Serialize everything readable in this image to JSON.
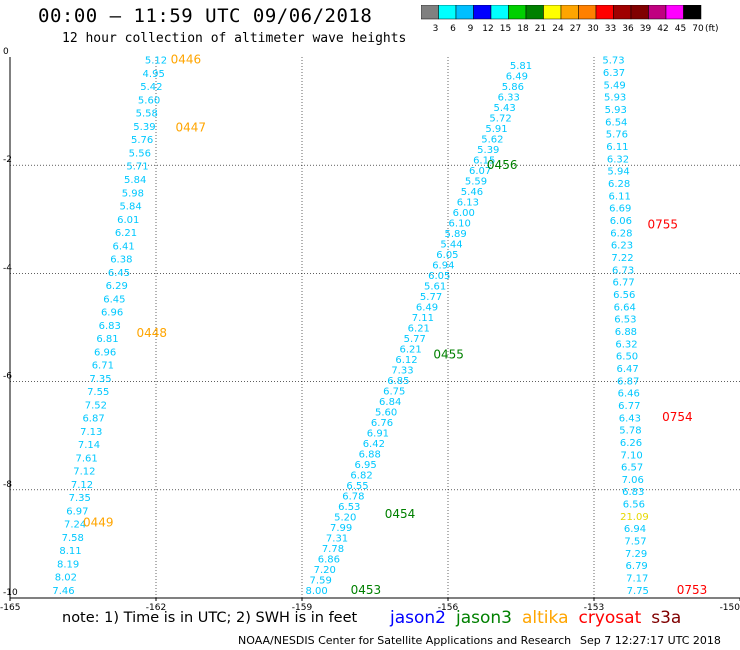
{
  "title": "00:00 – 11:59 UTC 09/06/2018",
  "subtitle": "12 hour collection of altimeter wave heights",
  "colorbar": {
    "unit": "(ft)",
    "colors": [
      "#808080",
      "#00ffff",
      "#00bfff",
      "#0000ff",
      "#00ffff",
      "#00d000",
      "#008000",
      "#ffff00",
      "#ffa500",
      "#ff8000",
      "#ff0000",
      "#a00000",
      "#800000",
      "#c00080",
      "#ff00ff",
      "#000000"
    ],
    "labels": [
      "3",
      "6",
      "9",
      "12",
      "15",
      "18",
      "21",
      "24",
      "27",
      "30",
      "33",
      "36",
      "39",
      "42",
      "45",
      "70"
    ]
  },
  "footer_note": "note: 1) Time is in UTC; 2) SWH is in feet",
  "legend": [
    {
      "name": "jason2",
      "color": "#0000ff"
    },
    {
      "name": "jason3",
      "color": "#008000"
    },
    {
      "name": "altika",
      "color": "#ffa500"
    },
    {
      "name": "cryosat",
      "color": "#ff0000"
    },
    {
      "name": "s3a",
      "color": "#800000"
    }
  ],
  "credit": "NOAA/NESDIS Center for Satellite Applications and Research",
  "timestamp": "Sep  7 12:27:17 UTC 2018",
  "chart_data": {
    "type": "scatter",
    "xlim": [
      -165,
      -150
    ],
    "ylim": [
      -10,
      0
    ],
    "x_ticks": [
      "-165",
      "-162",
      "-159",
      "-156",
      "-153",
      "-150"
    ],
    "y_ticks": [
      "0",
      "-2",
      "-4",
      "-6",
      "-8",
      "-10"
    ],
    "grid": true,
    "swh_color": "#00c8ff",
    "tracks": [
      {
        "satellite": "altika",
        "color": "#ffa500",
        "passes": [
          {
            "label": "0446",
            "lon": -161.7,
            "lat": -0.05
          },
          {
            "label": "0447",
            "lon": -161.6,
            "lat": -1.3
          },
          {
            "label": "0448",
            "lon": -162.4,
            "lat": -5.1
          },
          {
            "label": "0449",
            "lon": -163.5,
            "lat": -8.6
          }
        ],
        "start": [
          -162.0,
          -0.05
        ],
        "end": [
          -163.9,
          -9.85
        ],
        "values": [
          "5.12",
          "4.95",
          "5.42",
          "5.60",
          "5.58",
          "5.39",
          "5.76",
          "5.56",
          "5.71",
          "5.84",
          "5.98",
          "5.84",
          "6.01",
          "6.21",
          "6.41",
          "6.38",
          "6.45",
          "6.29",
          "6.45",
          "6.96",
          "6.83",
          "6.81",
          "6.96",
          "6.71",
          "7.35",
          "7.55",
          "7.52",
          "6.87",
          "7.13",
          "7.14",
          "7.61",
          "7.12",
          "7.12",
          "7.35",
          "6.97",
          "7.24",
          "7.58",
          "8.11",
          "8.19",
          "8.02",
          "7.46"
        ]
      },
      {
        "satellite": "jason3",
        "color": "#008000",
        "passes": [
          {
            "label": "0453",
            "lon": -158.0,
            "lat": -9.85
          },
          {
            "label": "0454",
            "lon": -157.3,
            "lat": -8.45
          },
          {
            "label": "0455",
            "lon": -156.3,
            "lat": -5.5
          },
          {
            "label": "0456",
            "lon": -155.2,
            "lat": -2.0
          }
        ],
        "start": [
          -154.5,
          -0.15
        ],
        "end": [
          -158.7,
          -9.85
        ],
        "values": [
          "5.81",
          "6.49",
          "5.86",
          "6.33",
          "5.43",
          "5.72",
          "5.91",
          "5.62",
          "5.39",
          "6.15",
          "6.07",
          "5.59",
          "5.46",
          "6.13",
          "6.00",
          "6.10",
          "5.89",
          "5.44",
          "6.05",
          "6.94",
          "6.05",
          "5.61",
          "5.77",
          "6.49",
          "7.11",
          "6.21",
          "5.77",
          "6.21",
          "6.12",
          "7.33",
          "6.85",
          "6.75",
          "6.84",
          "5.60",
          "6.76",
          "6.91",
          "6.42",
          "6.88",
          "6.95",
          "6.82",
          "6.55",
          "6.78",
          "6.53",
          "5.20",
          "7.99",
          "7.31",
          "7.78",
          "6.86",
          "7.20",
          "7.59",
          "8.00"
        ]
      },
      {
        "satellite": "cryosat",
        "color": "#ff0000",
        "passes": [
          {
            "label": "0755",
            "lon": -151.9,
            "lat": -3.1
          },
          {
            "label": "0754",
            "lon": -151.6,
            "lat": -6.65
          },
          {
            "label": "0753",
            "lon": -151.3,
            "lat": -9.85
          }
        ],
        "start": [
          -152.6,
          -0.05
        ],
        "end": [
          -152.1,
          -9.85
        ],
        "values": [
          "5.73",
          "6.37",
          "5.49",
          "5.93",
          "5.93",
          "6.54",
          "5.76",
          "6.11",
          "6.32",
          "5.94",
          "6.28",
          "6.11",
          "6.69",
          "6.06",
          "6.28",
          "6.23",
          "7.22",
          "6.73",
          "6.77",
          "6.56",
          "6.64",
          "6.53",
          "6.88",
          "6.32",
          "6.50",
          "6.47",
          "6.87",
          "6.46",
          "6.77",
          "6.43",
          "5.78",
          "6.26",
          "7.10",
          "6.57",
          "7.06",
          "6.83",
          "6.56",
          "21.09",
          "6.94",
          "7.57",
          "7.29",
          "6.79",
          "7.17",
          "7.75"
        ]
      }
    ]
  }
}
